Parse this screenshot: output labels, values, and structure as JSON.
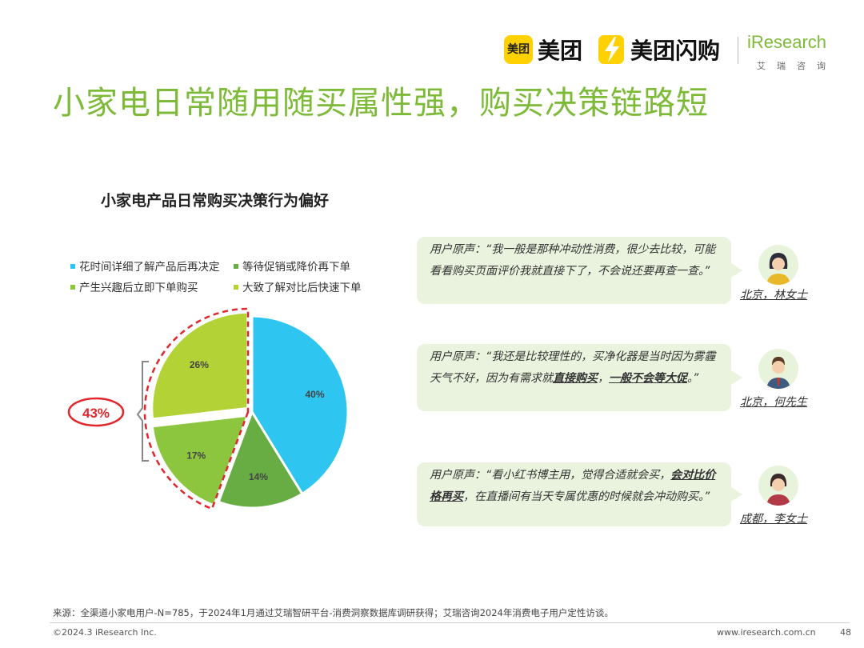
{
  "header": {
    "meituan_badge": "美团",
    "meituan": "美团",
    "shangou": "美团闪购",
    "iresearch": "iResearch",
    "iresearch_cn": "艾瑞咨询"
  },
  "page_title": "小家电日常随用随买属性强，购买决策链路短",
  "chart_data": {
    "type": "pie",
    "title": "小家电产品日常购买决策行为偏好",
    "categories": [
      "花时间详细了解产品后再决定",
      "等待促销或降价再下单",
      "产生兴趣后立即下单购买",
      "大致了解对比后快速下单"
    ],
    "values": [
      40,
      14,
      17,
      26
    ],
    "labels": [
      "40%",
      "14%",
      "17%",
      "26%"
    ],
    "colors": [
      "#2ec5f0",
      "#67ad43",
      "#8cc63f",
      "#b2d235"
    ],
    "legend_position": "top",
    "annotation": "43%"
  },
  "legend_colors": [
    "#2ec5f0",
    "#67ad43",
    "#8cc63f",
    "#b2d235"
  ],
  "quotes": [
    {
      "prefix": "用户原声：“我一般是那种冲动性消费，很少去比较，可能看看购买页面评价我就直接下了，不会说还要再查一查。”",
      "bold1": "",
      "mid": "",
      "bold2": "",
      "suffix": "",
      "person": "北京，林女士"
    },
    {
      "prefix": "用户原声：“我还是比较理性的，买净化器是当时因为雾霾天气不好，因为有需求就",
      "bold1": "直接购买",
      "mid": "，",
      "bold2": "一般不会等大促",
      "suffix": "。”",
      "person": "北京，何先生"
    },
    {
      "prefix": "用户原声：“看小红书博主用，觉得合适就会买，",
      "bold1": "会对比价格再买",
      "mid": "，在直播间有当天专属优惠的时候就会冲动购买。”",
      "bold2": "",
      "suffix": "",
      "person": "成都，李女士"
    }
  ],
  "footer": {
    "source": "来源：全渠道小家电用户-N=785，于2024年1月通过艾瑞智研平台-消费洞察数据库调研获得；艾瑞咨询2024年消费电子用户定性访谈。",
    "copyright": "©2024.3 iResearch Inc.",
    "url": "www.iresearch.com.cn",
    "page": "48"
  }
}
